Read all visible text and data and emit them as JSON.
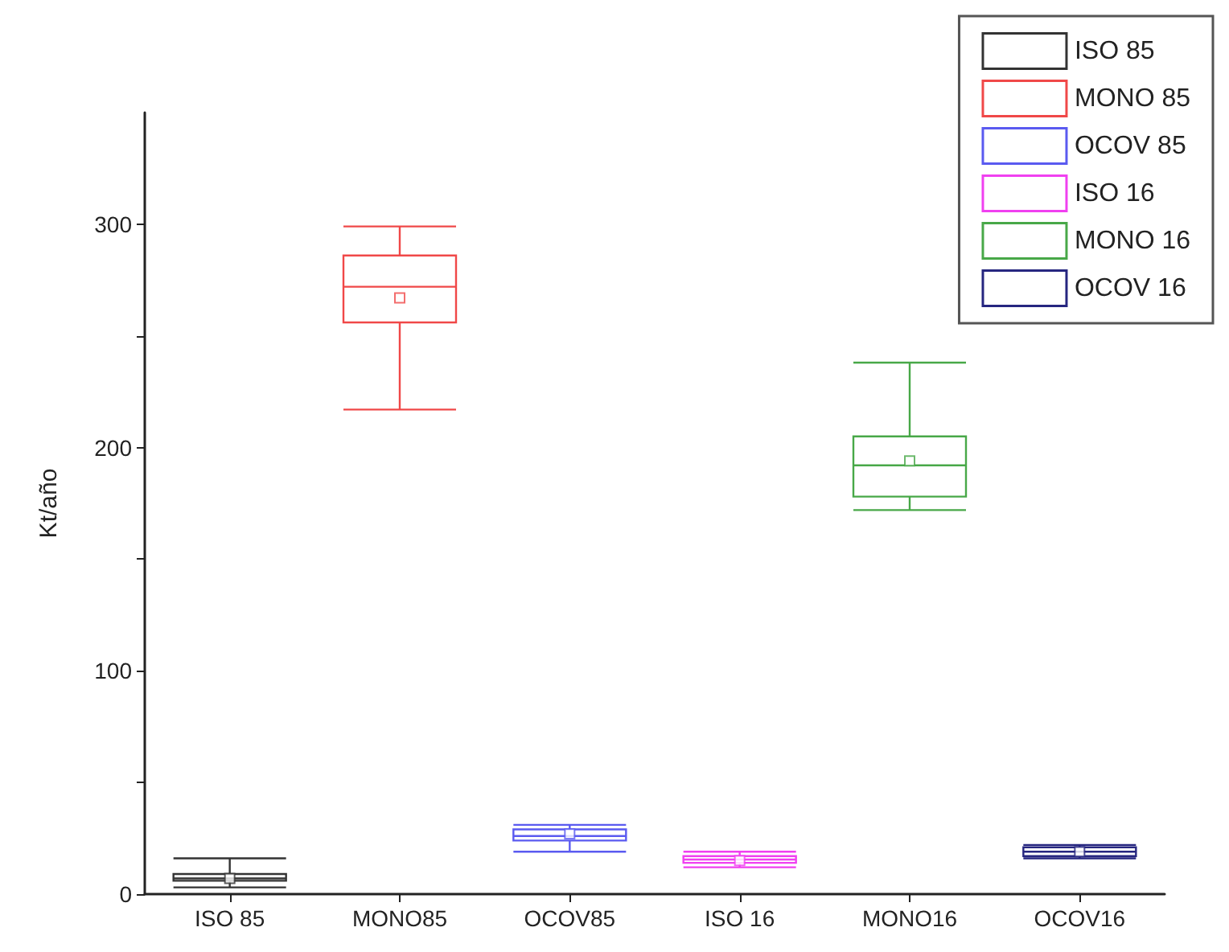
{
  "chart_data": {
    "type": "box",
    "ylabel": "Kt/año",
    "categories": [
      "ISO 85",
      "MONO85",
      "OCOV85",
      "ISO 16",
      "MONO16",
      "OCOV16"
    ],
    "ylim": [
      0,
      350
    ],
    "yticks": [
      0,
      {
        "value": 50,
        "label": null
      },
      100,
      {
        "value": 150,
        "label": null
      },
      200,
      {
        "value": 250,
        "label": null
      },
      300
    ],
    "grid": false,
    "legend": "top right",
    "series": [
      {
        "name": "ISO 85",
        "color": "#333333",
        "boxes": [
          {
            "low": 3,
            "q1": 6,
            "median": 7,
            "q3": 9,
            "high": 16,
            "mean": 7
          },
          null,
          null,
          null,
          null,
          null
        ]
      },
      {
        "name": "MONO 85",
        "color": "#f04848",
        "boxes": [
          null,
          {
            "low": 217,
            "q1": 256,
            "median": 272,
            "q3": 286,
            "high": 299,
            "mean": 267
          },
          null,
          null,
          null,
          null
        ]
      },
      {
        "name": "OCOV 85",
        "color": "#5a5af0",
        "boxes": [
          null,
          null,
          {
            "low": 19,
            "q1": 24,
            "median": 26,
            "q3": 29,
            "high": 31,
            "mean": 27
          },
          null,
          null,
          null
        ]
      },
      {
        "name": "ISO 16",
        "color": "#f040f0",
        "boxes": [
          null,
          null,
          null,
          {
            "low": 12,
            "q1": 14,
            "median": 15.5,
            "q3": 17,
            "high": 19,
            "mean": 15
          },
          null,
          null
        ]
      },
      {
        "name": "MONO 16",
        "color": "#48a848",
        "boxes": [
          null,
          null,
          null,
          null,
          {
            "low": 172,
            "q1": 178,
            "median": 192,
            "q3": 205,
            "high": 238,
            "mean": 194
          },
          null
        ]
      },
      {
        "name": "OCOV 16",
        "color": "#262680",
        "boxes": [
          null,
          null,
          null,
          null,
          null,
          {
            "low": 16,
            "q1": 17,
            "median": 19,
            "q3": 21,
            "high": 22,
            "mean": 19
          }
        ]
      }
    ]
  }
}
